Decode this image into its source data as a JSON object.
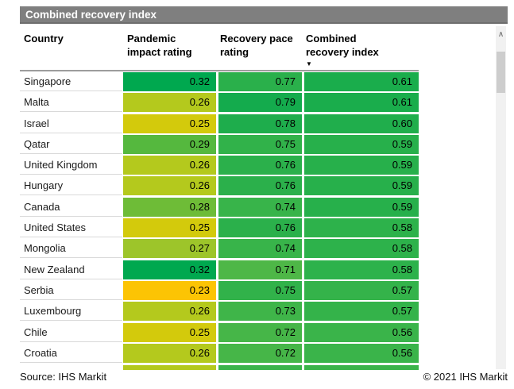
{
  "chart_data": {
    "type": "table",
    "title": "Combined recovery index",
    "columns": [
      "Country",
      "Pandemic impact rating",
      "Recovery pace rating",
      "Combined recovery index"
    ],
    "sort": {
      "column": "Combined recovery index",
      "direction": "descending",
      "icon": "▼"
    },
    "rows": [
      {
        "country": "Singapore",
        "values": [
          0.32,
          0.77,
          0.61
        ],
        "cell_colors": [
          "#00a84f",
          "#2ab04b",
          "#1aad4c"
        ]
      },
      {
        "country": "Malta",
        "values": [
          0.26,
          0.79,
          0.61
        ],
        "cell_colors": [
          "#b4c91d",
          "#14ab4d",
          "#1aad4c"
        ]
      },
      {
        "country": "Israel",
        "values": [
          0.25,
          0.78,
          0.6
        ],
        "cell_colors": [
          "#d3ca0c",
          "#1ead4c",
          "#20ae4c"
        ]
      },
      {
        "country": "Qatar",
        "values": [
          0.29,
          0.75,
          0.59
        ],
        "cell_colors": [
          "#55b83e",
          "#31b24a",
          "#27b04b"
        ]
      },
      {
        "country": "United Kingdom",
        "values": [
          0.26,
          0.76,
          0.59
        ],
        "cell_colors": [
          "#b4c91d",
          "#2bb04b",
          "#27b04b"
        ]
      },
      {
        "country": "Hungary",
        "values": [
          0.26,
          0.76,
          0.59
        ],
        "cell_colors": [
          "#b4c91d",
          "#2bb04b",
          "#27b04b"
        ]
      },
      {
        "country": "Canada",
        "values": [
          0.28,
          0.74,
          0.59
        ],
        "cell_colors": [
          "#6ebc37",
          "#38b44a",
          "#27b04b"
        ]
      },
      {
        "country": "United States",
        "values": [
          0.25,
          0.76,
          0.58
        ],
        "cell_colors": [
          "#d3ca0c",
          "#2bb04b",
          "#2db24b"
        ]
      },
      {
        "country": "Mongolia",
        "values": [
          0.27,
          0.74,
          0.58
        ],
        "cell_colors": [
          "#9dc52a",
          "#38b44a",
          "#2db24b"
        ]
      },
      {
        "country": "New Zealand",
        "values": [
          0.32,
          0.71,
          0.58
        ],
        "cell_colors": [
          "#00a84f",
          "#4eb747",
          "#2db24b"
        ]
      },
      {
        "country": "Serbia",
        "values": [
          0.23,
          0.75,
          0.57
        ],
        "cell_colors": [
          "#fcc404",
          "#31b24a",
          "#34b34a"
        ]
      },
      {
        "country": "Luxembourg",
        "values": [
          0.26,
          0.73,
          0.57
        ],
        "cell_colors": [
          "#b4c91d",
          "#3fb549",
          "#34b34a"
        ]
      },
      {
        "country": "Chile",
        "values": [
          0.25,
          0.72,
          0.56
        ],
        "cell_colors": [
          "#d3ca0c",
          "#46b648",
          "#3ab44a"
        ]
      },
      {
        "country": "Croatia",
        "values": [
          0.26,
          0.72,
          0.56
        ],
        "cell_colors": [
          "#b4c91d",
          "#46b648",
          "#3ab44a"
        ]
      }
    ],
    "partial_next_row_colors": [
      "#b4c91d",
      "#3bb44a",
      "#3bb44a"
    ]
  },
  "scrollbar": {
    "up_arrow": "∧"
  },
  "footer": {
    "source": "Source: IHS Markit",
    "copyright": "© 2021 IHS Markit"
  },
  "colors": {
    "title_bar_bg": "#7f7f7f",
    "title_bar_text": "#ffffff"
  }
}
